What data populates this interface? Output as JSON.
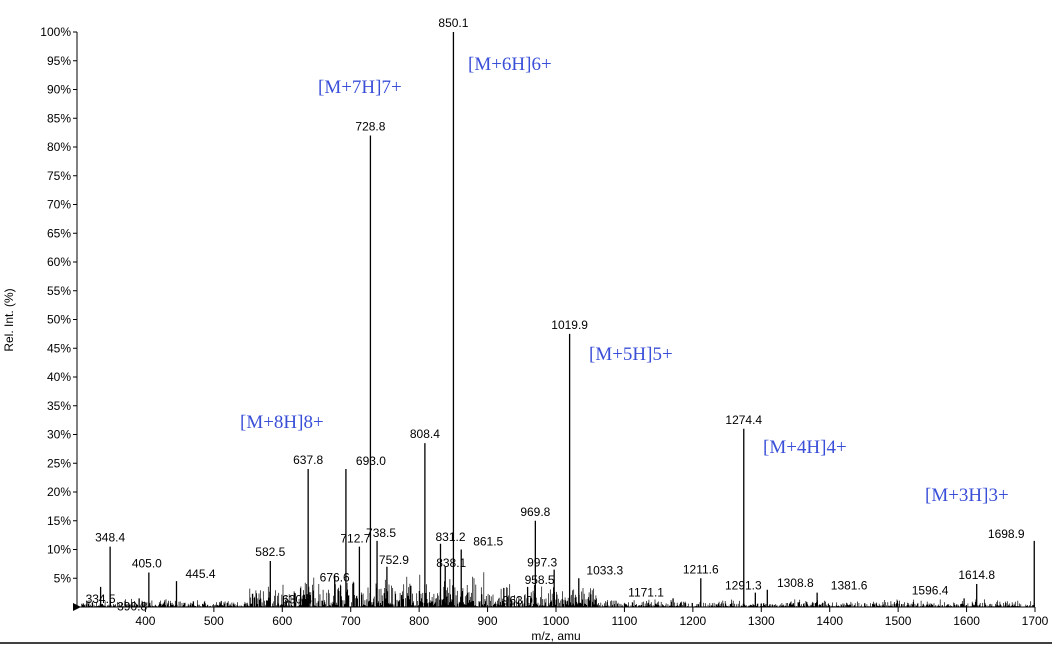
{
  "chart_data": {
    "type": "bar",
    "title": "",
    "xlabel": "m/z, amu",
    "ylabel": "Rel. Int. (%)",
    "xlim": [
      300,
      1700
    ],
    "ylim": [
      0,
      100
    ],
    "x_ticks": [
      400,
      500,
      600,
      700,
      800,
      900,
      1000,
      1100,
      1200,
      1300,
      1400,
      1500,
      1600,
      1700
    ],
    "y_ticks": [
      5,
      10,
      15,
      20,
      25,
      30,
      35,
      40,
      45,
      50,
      55,
      60,
      65,
      70,
      75,
      80,
      85,
      90,
      95,
      100
    ],
    "y_tick_suffix": "%",
    "grid": false,
    "peaks": [
      {
        "x": 334.5,
        "y": 3.5,
        "label": "334.5"
      },
      {
        "x": 348.4,
        "y": 10.5,
        "label": "348.4"
      },
      {
        "x": 390.8,
        "y": 1.5,
        "label": "390.8"
      },
      {
        "x": 405.0,
        "y": 6,
        "label": "405.0"
      },
      {
        "x": 445.4,
        "y": 4.5,
        "label": "445.4"
      },
      {
        "x": 582.5,
        "y": 8,
        "label": "582.5"
      },
      {
        "x": 630.4,
        "y": 2,
        "label": "630.4"
      },
      {
        "x": 637.8,
        "y": 24,
        "label": "637.8"
      },
      {
        "x": 676.6,
        "y": 5.5,
        "label": "676.6"
      },
      {
        "x": 693.0,
        "y": 24,
        "label": "693.0"
      },
      {
        "x": 712.7,
        "y": 10.5,
        "label": "712.7"
      },
      {
        "x": 728.8,
        "y": 82,
        "label": "728.8"
      },
      {
        "x": 738.5,
        "y": 11.5,
        "label": "738.5"
      },
      {
        "x": 752.9,
        "y": 7,
        "label": "752.9"
      },
      {
        "x": 808.4,
        "y": 28.5,
        "label": "808.4"
      },
      {
        "x": 831.2,
        "y": 11,
        "label": "831.2"
      },
      {
        "x": 838.1,
        "y": 7,
        "label": "838.1"
      },
      {
        "x": 850.1,
        "y": 100,
        "label": "850.1"
      },
      {
        "x": 861.5,
        "y": 10,
        "label": "861.5"
      },
      {
        "x": 958.5,
        "y": 3.5,
        "label": "958.5"
      },
      {
        "x": 963.0,
        "y": 1.5,
        "label": "963.0"
      },
      {
        "x": 969.8,
        "y": 15,
        "label": "969.8"
      },
      {
        "x": 997.3,
        "y": 6.5,
        "label": "997.3"
      },
      {
        "x": 1019.9,
        "y": 47.5,
        "label": "1019.9"
      },
      {
        "x": 1033.3,
        "y": 5,
        "label": "1033.3"
      },
      {
        "x": 1171.1,
        "y": 1.5,
        "label": "1171.1"
      },
      {
        "x": 1211.6,
        "y": 5,
        "label": "1211.6"
      },
      {
        "x": 1274.4,
        "y": 31,
        "label": "1274.4"
      },
      {
        "x": 1291.3,
        "y": 2.5,
        "label": "1291.3"
      },
      {
        "x": 1308.8,
        "y": 3,
        "label": "1308.8"
      },
      {
        "x": 1381.6,
        "y": 2.5,
        "label": "1381.6"
      },
      {
        "x": 1596.4,
        "y": 1.5,
        "label": "1596.4"
      },
      {
        "x": 1614.8,
        "y": 4,
        "label": "1614.8"
      },
      {
        "x": 1698.9,
        "y": 11.5,
        "label": "1698.9"
      }
    ],
    "annotations": [
      {
        "text": "[M+8H]8+",
        "x": 637.8
      },
      {
        "text": "[M+7H]7+",
        "x": 728.8
      },
      {
        "text": "[M+6H]6+",
        "x": 850.1
      },
      {
        "text": "[M+5H]5+",
        "x": 1019.9
      },
      {
        "text": "[M+4H]4+",
        "x": 1274.4
      },
      {
        "text": "[M+3H]3+",
        "x": 1698.9
      }
    ],
    "annotation_color": "#3a4fd8",
    "line_color": "#000000"
  }
}
